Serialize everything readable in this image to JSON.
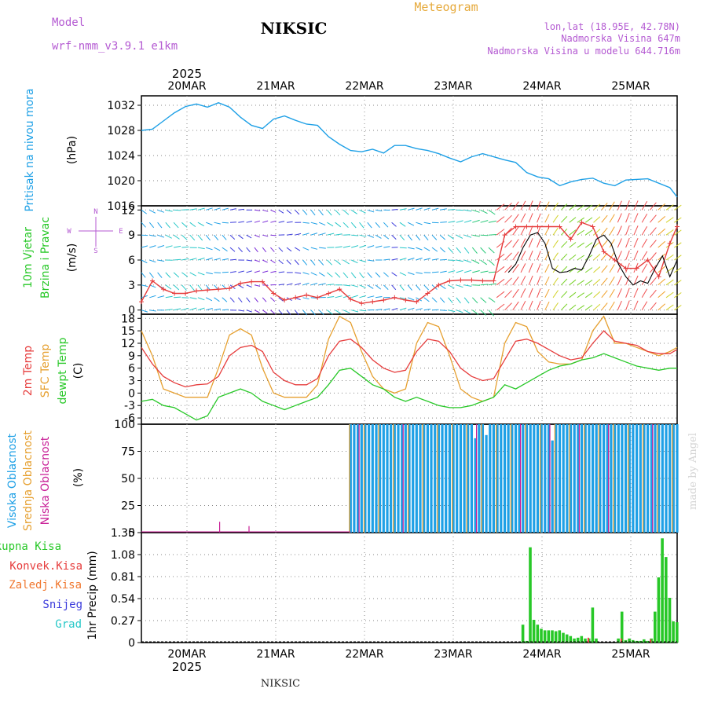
{
  "header": {
    "model_label": "Model",
    "model_name": "wrf-nmm_v3.9.1 e1km",
    "station_title": "NIKSIC",
    "product": "Meteogram",
    "coords": "lon,lat (18.95E, 42.78N)",
    "elevation": "Nadmorska Visina 647m",
    "model_elevation": "Nadmorska Visina u modelu 644.716m"
  },
  "top_axis": {
    "year": "2025",
    "dates": [
      "20MAR",
      "21MAR",
      "22MAR",
      "23MAR",
      "24MAR",
      "25MAR"
    ]
  },
  "bottom_axis": {
    "year": "2025",
    "dates": [
      "20MAR",
      "21MAR",
      "22MAR",
      "23MAR",
      "24MAR",
      "25MAR"
    ]
  },
  "footer": {
    "station": "NIKSIC"
  },
  "watermark": "made by Angel",
  "colors": {
    "pressure": "#1ea0e6",
    "wind_speed": "#e63c3c",
    "wind_dir_line": "#000000",
    "temp_2m": "#e63c3c",
    "temp_sfc": "#e6a030",
    "dewpoint": "#28c828",
    "cloud_high": "#1ea0e6",
    "cloud_mid": "#e6a030",
    "cloud_low": "#c81e96",
    "precip_total": "#28c828",
    "precip_conv": "#e63c3c",
    "precip_frozen": "#f07830",
    "snow": "#3c3cdc",
    "hail": "#28c8c8"
  },
  "chart_data": [
    {
      "type": "line",
      "panel": "pressure",
      "labels": [
        "Pritisak na nivou mora"
      ],
      "unit": "(hPa)",
      "ylim": [
        1016,
        1033.5
      ],
      "yticks": [
        1016,
        1020,
        1024,
        1028,
        1032
      ],
      "grid": true,
      "series": [
        {
          "name": "Pritisak na nivou mora",
          "x": [
            0,
            3,
            6,
            9,
            12,
            15,
            18,
            21,
            24,
            27,
            30,
            33,
            36,
            39,
            42,
            45,
            48,
            51,
            54,
            57,
            60,
            63,
            66,
            69,
            72,
            75,
            78,
            81,
            84,
            87,
            90,
            93,
            96,
            99,
            102,
            105,
            108,
            111,
            114,
            117,
            120,
            123,
            126,
            129,
            132,
            138,
            144,
            146
          ],
          "y": [
            1028,
            1028.2,
            1029.5,
            1030.8,
            1031.8,
            1032.2,
            1031.7,
            1032.4,
            1031.7,
            1030.1,
            1028.8,
            1028.3,
            1029.8,
            1030.3,
            1029.6,
            1029,
            1028.8,
            1027,
            1025.8,
            1024.8,
            1024.6,
            1025,
            1024.4,
            1025.6,
            1025.6,
            1025.1,
            1024.8,
            1024.3,
            1023.6,
            1023,
            1023.8,
            1024.3,
            1023.8,
            1023.3,
            1022.9,
            1021.3,
            1020.6,
            1020.3,
            1019.2,
            1019.8,
            1020.2,
            1020.4,
            1019.6,
            1019.2,
            1020.1,
            1020.3,
            1018.9,
            1017.4
          ]
        }
      ]
    },
    {
      "type": "line",
      "panel": "wind",
      "labels": [
        "10m Vjetar",
        "Brzina i Pravac"
      ],
      "unit": "(m/s)",
      "compass": [
        "N",
        "W",
        "E",
        "S"
      ],
      "ylim": [
        -0.5,
        12.5
      ],
      "yticks": [
        0,
        3,
        6,
        9,
        12
      ],
      "grid": true,
      "series": [
        {
          "name": "Brzina",
          "x": [
            0,
            3,
            6,
            9,
            12,
            15,
            18,
            21,
            24,
            27,
            30,
            33,
            36,
            39,
            42,
            45,
            48,
            51,
            54,
            57,
            60,
            63,
            66,
            69,
            72,
            75,
            78,
            81,
            84,
            87,
            90,
            93,
            96,
            99,
            102,
            105,
            108,
            111,
            114,
            117,
            120,
            123,
            126,
            129,
            132,
            135,
            138,
            141,
            144,
            146
          ],
          "y": [
            1,
            3.5,
            2.5,
            2,
            2,
            2.3,
            2.4,
            2.5,
            2.6,
            3.2,
            3.4,
            3.4,
            2,
            1.2,
            1.5,
            1.8,
            1.5,
            2,
            2.5,
            1.3,
            0.8,
            1,
            1.2,
            1.5,
            1.2,
            1,
            2,
            3,
            3.5,
            3.6,
            3.6,
            3.5,
            3.5,
            9,
            10,
            10,
            10,
            10,
            10,
            8.5,
            10.5,
            10,
            7,
            6,
            5,
            5,
            6,
            4,
            8,
            10
          ]
        },
        {
          "name": "Pravac",
          "x": [
            100,
            102,
            104,
            106,
            108,
            110,
            112,
            114,
            116,
            118,
            120,
            122,
            124,
            126,
            128,
            130,
            132,
            134,
            136,
            138,
            140,
            142,
            144,
            146
          ],
          "y": [
            4.5,
            5.5,
            7.5,
            9,
            9.3,
            8,
            5,
            4.5,
            4.6,
            5,
            4.8,
            6.5,
            8.5,
            9,
            8,
            5.5,
            4,
            3,
            3.5,
            3.2,
            5,
            6.5,
            4,
            6
          ]
        }
      ]
    },
    {
      "type": "line",
      "panel": "temperature",
      "labels": [
        "2m Temp",
        "SFC Temp",
        "dewpt Temp"
      ],
      "unit": "(C)",
      "ylim": [
        -7.5,
        19
      ],
      "yticks": [
        -6,
        -3,
        0,
        3,
        6,
        9,
        12,
        15,
        18
      ],
      "grid": true,
      "series": [
        {
          "name": "2m Temp",
          "x": [
            0,
            3,
            6,
            9,
            12,
            15,
            18,
            21,
            24,
            27,
            30,
            33,
            36,
            39,
            42,
            45,
            48,
            51,
            54,
            57,
            60,
            63,
            66,
            69,
            72,
            75,
            78,
            81,
            84,
            87,
            90,
            93,
            96,
            99,
            102,
            105,
            108,
            111,
            114,
            117,
            120,
            123,
            126,
            129,
            132,
            135,
            138,
            141,
            144,
            146
          ],
          "y": [
            11,
            7,
            4,
            2.5,
            1.5,
            2,
            2.2,
            4,
            9,
            11,
            11.5,
            10,
            5,
            3,
            2,
            2,
            3.5,
            9,
            12.5,
            13,
            11,
            8,
            6,
            5,
            5.5,
            10,
            13,
            12.5,
            10,
            6,
            4,
            3,
            3.5,
            8,
            12.5,
            13,
            12,
            10.5,
            9,
            8,
            8.5,
            12,
            15,
            12.5,
            12,
            11.5,
            10,
            9.5,
            9.5,
            10.5
          ]
        },
        {
          "name": "SFC Temp",
          "x": [
            0,
            3,
            6,
            9,
            12,
            15,
            18,
            21,
            24,
            27,
            30,
            33,
            36,
            39,
            42,
            45,
            48,
            51,
            54,
            57,
            60,
            63,
            66,
            69,
            72,
            75,
            78,
            81,
            84,
            87,
            90,
            93,
            96,
            99,
            102,
            105,
            108,
            111,
            114,
            117,
            120,
            123,
            126,
            129,
            132,
            135,
            138,
            141,
            144,
            146
          ],
          "y": [
            15,
            9,
            1,
            0,
            -1,
            -1,
            -1,
            6,
            14,
            15.5,
            14,
            6,
            0,
            -1,
            -1,
            -1,
            2,
            13,
            18.5,
            17,
            10,
            4,
            1,
            0,
            1,
            12,
            17,
            16,
            9,
            1,
            -1,
            -2,
            -1,
            12,
            17,
            16,
            10,
            7.5,
            7,
            7,
            8,
            15,
            18.5,
            12,
            12,
            11,
            10,
            9,
            10,
            11
          ]
        },
        {
          "name": "dewpt Temp",
          "x": [
            0,
            3,
            6,
            9,
            12,
            15,
            18,
            21,
            24,
            27,
            30,
            33,
            36,
            39,
            42,
            45,
            48,
            51,
            54,
            57,
            60,
            63,
            66,
            69,
            72,
            75,
            78,
            81,
            84,
            87,
            90,
            93,
            96,
            99,
            102,
            105,
            108,
            111,
            114,
            117,
            120,
            123,
            126,
            129,
            132,
            135,
            138,
            141,
            144,
            146
          ],
          "y": [
            -2,
            -1.5,
            -3,
            -3.5,
            -5,
            -6.5,
            -5.5,
            -1,
            0,
            1,
            0,
            -2,
            -3,
            -4,
            -3,
            -2,
            -1,
            2,
            5.5,
            6,
            4,
            2,
            1,
            -1,
            -2,
            -1,
            -2,
            -3,
            -3.5,
            -3.5,
            -3,
            -2,
            -1,
            2,
            1,
            2.5,
            4,
            5.5,
            6.5,
            7,
            8,
            8.5,
            9.5,
            8.5,
            7.5,
            6.5,
            6,
            5.5,
            6,
            6
          ]
        }
      ]
    },
    {
      "type": "bar",
      "panel": "cloud",
      "labels": [
        "Visoka Oblacnost",
        "Srednja Oblacnost",
        "Niska Oblacnost"
      ],
      "unit": "(%)",
      "ylim": [
        0,
        100
      ],
      "yticks": [
        0,
        25,
        50,
        75,
        100
      ],
      "grid": true,
      "series": [
        {
          "name": "Visoka Oblacnost",
          "x": [
            57,
            58,
            59,
            60,
            61,
            62,
            63,
            64,
            65,
            66,
            67,
            68,
            69,
            70,
            71,
            72,
            73,
            74,
            75,
            76,
            77,
            78,
            79,
            80,
            81,
            82,
            83,
            84,
            85,
            86,
            87,
            88,
            89,
            90,
            91,
            92,
            93,
            94,
            95,
            96,
            97,
            98,
            99,
            100,
            101,
            102,
            103,
            104,
            105,
            106,
            107,
            108,
            109,
            110,
            111,
            112,
            113,
            114,
            115,
            116,
            117,
            118,
            119,
            120,
            121,
            122,
            123,
            124,
            125,
            126,
            127,
            128,
            129,
            130,
            131,
            132,
            133,
            134,
            135,
            136,
            137,
            138,
            139,
            140,
            141,
            142,
            143,
            144,
            145,
            146
          ],
          "values": [
            100,
            100,
            100,
            100,
            100,
            100,
            100,
            100,
            100,
            100,
            100,
            100,
            100,
            100,
            100,
            100,
            100,
            100,
            100,
            100,
            100,
            100,
            100,
            100,
            100,
            100,
            100,
            100,
            100,
            100,
            100,
            100,
            100,
            100,
            87,
            100,
            100,
            90,
            100,
            100,
            100,
            100,
            100,
            100,
            100,
            100,
            100,
            100,
            100,
            100,
            100,
            100,
            100,
            100,
            100,
            85,
            100,
            100,
            100,
            100,
            100,
            100,
            100,
            100,
            100,
            100,
            100,
            100,
            100,
            100,
            100,
            100,
            100,
            100,
            100,
            100,
            100,
            100,
            100,
            100,
            100,
            100,
            100,
            100,
            100,
            100,
            100,
            100,
            100,
            100
          ]
        },
        {
          "name": "Srednja Oblacnost",
          "x": [
            57,
            61,
            65,
            69,
            73,
            77,
            81,
            85,
            89,
            93,
            97,
            101,
            105,
            109,
            113,
            117,
            121,
            125,
            129,
            133,
            137,
            141,
            145
          ],
          "values": [
            100,
            100,
            100,
            100,
            100,
            100,
            100,
            100,
            100,
            100,
            100,
            100,
            100,
            100,
            100,
            100,
            100,
            100,
            100,
            100,
            100,
            100,
            100
          ]
        },
        {
          "name": "Niska Oblacnost",
          "x": [
            21,
            29,
            59,
            71,
            91,
            103,
            111,
            119,
            127,
            139
          ],
          "values": [
            10,
            6,
            100,
            100,
            100,
            100,
            100,
            100,
            100,
            100
          ]
        }
      ]
    },
    {
      "type": "bar",
      "panel": "precip",
      "labels": [
        "Ukupna Kisa",
        "Konvek.Kisa",
        "Zaledj.Kisa",
        "Snijeg",
        "Grad"
      ],
      "unit": "1hr Precip (mm)",
      "ylim": [
        0,
        1.35
      ],
      "yticks": [
        0,
        0.27,
        0.54,
        0.81,
        1.08,
        1.35
      ],
      "ytick_labels": [
        "0",
        "0.27",
        "0.54",
        "0.81",
        "1.08",
        "1.35"
      ],
      "grid": true,
      "series": [
        {
          "name": "Ukupna Kisa",
          "x": [
            104,
            105,
            106,
            107,
            108,
            109,
            110,
            111,
            112,
            113,
            114,
            115,
            116,
            117,
            118,
            119,
            120,
            121,
            122,
            123,
            124,
            130,
            131,
            132,
            133,
            134,
            135,
            136,
            137,
            138,
            139,
            140,
            141,
            142,
            143,
            144,
            145,
            146
          ],
          "values": [
            0.22,
            0.02,
            1.17,
            0.28,
            0.22,
            0.17,
            0.15,
            0.15,
            0.15,
            0.14,
            0.15,
            0.12,
            0.1,
            0.08,
            0.05,
            0.06,
            0.08,
            0.05,
            0.05,
            0.43,
            0.05,
            0.05,
            0.38,
            0.03,
            0.05,
            0.03,
            0.02,
            0.02,
            0.04,
            0.02,
            0.05,
            0.38,
            0.8,
            1.28,
            1.05,
            0.55,
            0.26,
            0.25
          ]
        },
        {
          "name": "Konvek.Kisa",
          "x": [
            122,
            131,
            139
          ],
          "values": [
            0.06,
            0.05,
            0.04
          ]
        }
      ]
    }
  ]
}
